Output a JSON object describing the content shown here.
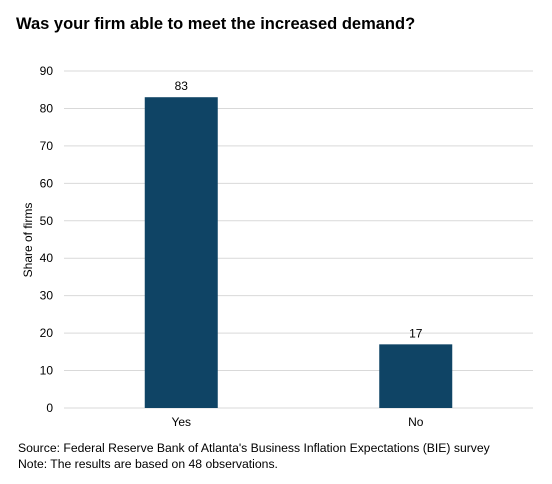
{
  "chart_data": {
    "type": "bar",
    "title": "Was your firm able to meet the increased demand?",
    "categories": [
      "Yes",
      "No"
    ],
    "values": [
      83,
      17
    ],
    "data_labels": [
      "83",
      "17"
    ],
    "ylabel": "Share of firms",
    "xlabel": "",
    "ylim": [
      0,
      90
    ],
    "yticks": [
      0,
      10,
      20,
      30,
      40,
      50,
      60,
      70,
      80,
      90
    ],
    "grid": true,
    "legend": "none",
    "bar_color": "#0f4465",
    "grid_color": "#d9d9d9"
  },
  "footer": {
    "source": "Source: Federal Reserve Bank of Atlanta's Business Inflation Expectations (BIE) survey",
    "note": "Note: The results are based on 48 observations."
  }
}
